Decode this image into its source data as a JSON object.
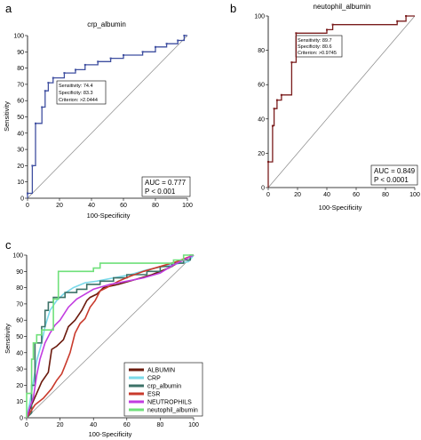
{
  "panels": [
    {
      "letter": "a",
      "title": "crp_albumin",
      "xlabel": "100-Specificity",
      "ylabel": "Sensitivity",
      "annotation": [
        "Sensitivity: 74.4",
        "Specificity: 83.3",
        "Criterion: >2.0444"
      ],
      "auc": [
        "AUC = 0.777",
        "P < 0.001"
      ]
    },
    {
      "letter": "b",
      "title": "neutophil_albumin",
      "xlabel": "100-Specificity",
      "ylabel": "",
      "annotation": [
        "Sensitivity: 89.7",
        "Specificity: 80.6",
        "Criterion: >0.9745"
      ],
      "auc": [
        "AUC = 0.849",
        "P < 0.0001"
      ]
    },
    {
      "letter": "c",
      "title": "",
      "xlabel": "100-Specificity",
      "ylabel": "Sensitivity",
      "legend": [
        "ALBUMIN",
        "CRP",
        "crp_albumin",
        "ESR",
        "NEUTROPHILS",
        "neutophil_albumin"
      ]
    }
  ],
  "chart_data": [
    {
      "type": "line",
      "title": "crp_albumin",
      "xlabel": "100-Specificity",
      "ylabel": "Sensitivity",
      "xlim": [
        0,
        100
      ],
      "ylim": [
        0,
        100
      ],
      "xticks": [
        0,
        20,
        40,
        60,
        80,
        100
      ],
      "yticks": [
        0,
        10,
        20,
        30,
        40,
        50,
        60,
        70,
        80,
        90,
        100
      ],
      "colors": {
        "roc": "#3f4fa0",
        "diagonal": "#8a8a8a"
      },
      "series": [
        {
          "values_xy": [
            [
              0,
              0
            ],
            [
              0,
              3
            ],
            [
              3,
              3
            ],
            [
              3,
              20
            ],
            [
              5,
              20
            ],
            [
              5,
              46
            ],
            [
              9,
              46
            ],
            [
              9,
              56
            ],
            [
              11,
              56
            ],
            [
              11,
              66
            ],
            [
              13,
              66
            ],
            [
              13,
              71
            ],
            [
              16,
              71
            ],
            [
              16,
              74
            ],
            [
              23,
              74
            ],
            [
              23,
              77
            ],
            [
              30,
              77
            ],
            [
              30,
              79
            ],
            [
              36,
              79
            ],
            [
              36,
              82
            ],
            [
              44,
              82
            ],
            [
              44,
              84
            ],
            [
              52,
              84
            ],
            [
              52,
              86
            ],
            [
              60,
              86
            ],
            [
              60,
              88
            ],
            [
              72,
              88
            ],
            [
              72,
              90
            ],
            [
              80,
              90
            ],
            [
              80,
              93
            ],
            [
              87,
              93
            ],
            [
              87,
              95
            ],
            [
              94,
              95
            ],
            [
              94,
              97
            ],
            [
              98,
              97
            ],
            [
              98,
              100
            ],
            [
              100,
              100
            ]
          ]
        }
      ]
    },
    {
      "type": "line",
      "title": "neutophil_albumin",
      "xlabel": "100-Specificity",
      "ylabel": "",
      "xlim": [
        0,
        100
      ],
      "ylim": [
        0,
        100
      ],
      "xticks": [
        0,
        20,
        40,
        60,
        80,
        100
      ],
      "yticks": [
        0,
        20,
        40,
        60,
        80,
        100
      ],
      "colors": {
        "roc": "#7a1c1c",
        "diagonal": "#8a8a8a"
      },
      "series": [
        {
          "values_xy": [
            [
              0,
              0
            ],
            [
              0,
              15
            ],
            [
              3,
              15
            ],
            [
              3,
              36
            ],
            [
              4,
              36
            ],
            [
              4,
              46
            ],
            [
              6,
              46
            ],
            [
              6,
              51
            ],
            [
              9,
              51
            ],
            [
              9,
              54
            ],
            [
              16,
              54
            ],
            [
              16,
              73
            ],
            [
              19,
              73
            ],
            [
              19,
              90
            ],
            [
              40,
              90
            ],
            [
              40,
              92
            ],
            [
              44,
              92
            ],
            [
              44,
              95
            ],
            [
              88,
              95
            ],
            [
              88,
              97
            ],
            [
              94,
              97
            ],
            [
              94,
              100
            ],
            [
              100,
              100
            ]
          ]
        }
      ]
    },
    {
      "type": "line",
      "title": "",
      "xlabel": "100-Specificity",
      "ylabel": "Sensitivity",
      "xlim": [
        0,
        100
      ],
      "ylim": [
        0,
        100
      ],
      "xticks": [
        0,
        20,
        40,
        60,
        80,
        100
      ],
      "yticks": [
        0,
        10,
        20,
        30,
        40,
        50,
        60,
        70,
        80,
        90,
        100
      ],
      "legend_position": "bottom-right",
      "colors": {
        "diagonal": "#8a8a8a"
      },
      "series": [
        {
          "name": "ALBUMIN",
          "color": "#6b1a0d",
          "values_xy": [
            [
              0,
              0
            ],
            [
              3,
              8
            ],
            [
              6,
              15
            ],
            [
              9,
              22
            ],
            [
              13,
              28
            ],
            [
              15,
              42
            ],
            [
              18,
              44
            ],
            [
              22,
              48
            ],
            [
              25,
              56
            ],
            [
              29,
              60
            ],
            [
              33,
              66
            ],
            [
              36,
              72
            ],
            [
              38,
              74
            ],
            [
              42,
              76
            ],
            [
              46,
              80
            ],
            [
              55,
              82
            ],
            [
              65,
              85
            ],
            [
              75,
              88
            ],
            [
              85,
              92
            ],
            [
              92,
              96
            ],
            [
              100,
              100
            ]
          ]
        },
        {
          "name": "CRP",
          "color": "#7ad9ea",
          "values_xy": [
            [
              0,
              0
            ],
            [
              2,
              10
            ],
            [
              4,
              22
            ],
            [
              6,
              35
            ],
            [
              9,
              46
            ],
            [
              11,
              56
            ],
            [
              14,
              66
            ],
            [
              18,
              72
            ],
            [
              22,
              76
            ],
            [
              28,
              80
            ],
            [
              35,
              83
            ],
            [
              42,
              84
            ],
            [
              52,
              86
            ],
            [
              62,
              88
            ],
            [
              72,
              91
            ],
            [
              82,
              93
            ],
            [
              92,
              95
            ],
            [
              97,
              96
            ],
            [
              100,
              100
            ]
          ]
        },
        {
          "name": "crp_albumin",
          "color": "#3c7268",
          "values_xy": [
            [
              0,
              0
            ],
            [
              3,
              3
            ],
            [
              3,
              20
            ],
            [
              5,
              20
            ],
            [
              5,
              46
            ],
            [
              9,
              46
            ],
            [
              9,
              56
            ],
            [
              11,
              56
            ],
            [
              11,
              66
            ],
            [
              13,
              66
            ],
            [
              13,
              71
            ],
            [
              16,
              71
            ],
            [
              16,
              74
            ],
            [
              23,
              74
            ],
            [
              23,
              77
            ],
            [
              30,
              77
            ],
            [
              30,
              79
            ],
            [
              36,
              79
            ],
            [
              36,
              82
            ],
            [
              44,
              82
            ],
            [
              44,
              84
            ],
            [
              52,
              84
            ],
            [
              52,
              86
            ],
            [
              60,
              86
            ],
            [
              60,
              88
            ],
            [
              72,
              88
            ],
            [
              72,
              90
            ],
            [
              80,
              90
            ],
            [
              80,
              93
            ],
            [
              87,
              93
            ],
            [
              87,
              95
            ],
            [
              94,
              95
            ],
            [
              94,
              97
            ],
            [
              98,
              97
            ],
            [
              98,
              100
            ],
            [
              100,
              100
            ]
          ]
        },
        {
          "name": "ESR",
          "color": "#c93a2c",
          "values_xy": [
            [
              0,
              0
            ],
            [
              5,
              8
            ],
            [
              10,
              12
            ],
            [
              15,
              18
            ],
            [
              18,
              23
            ],
            [
              21,
              27
            ],
            [
              23,
              32
            ],
            [
              26,
              40
            ],
            [
              29,
              52
            ],
            [
              32,
              58
            ],
            [
              35,
              61
            ],
            [
              38,
              68
            ],
            [
              41,
              72
            ],
            [
              44,
              78
            ],
            [
              48,
              80
            ],
            [
              55,
              84
            ],
            [
              62,
              87
            ],
            [
              70,
              90
            ],
            [
              80,
              93
            ],
            [
              90,
              96
            ],
            [
              100,
              100
            ]
          ]
        },
        {
          "name": "NEUTROPHILS",
          "color": "#c23de0",
          "values_xy": [
            [
              0,
              0
            ],
            [
              2,
              7
            ],
            [
              4,
              12
            ],
            [
              6,
              26
            ],
            [
              8,
              36
            ],
            [
              11,
              46
            ],
            [
              14,
              52
            ],
            [
              17,
              57
            ],
            [
              20,
              60
            ],
            [
              25,
              68
            ],
            [
              30,
              73
            ],
            [
              35,
              76
            ],
            [
              40,
              79
            ],
            [
              50,
              82
            ],
            [
              60,
              84
            ],
            [
              70,
              86
            ],
            [
              80,
              89
            ],
            [
              88,
              94
            ],
            [
              94,
              97
            ],
            [
              100,
              100
            ]
          ]
        },
        {
          "name": "neutophil_albumin",
          "color": "#6fe07a",
          "values_xy": [
            [
              0,
              0
            ],
            [
              0,
              15
            ],
            [
              3,
              15
            ],
            [
              3,
              36
            ],
            [
              4,
              36
            ],
            [
              4,
              46
            ],
            [
              6,
              46
            ],
            [
              6,
              51
            ],
            [
              9,
              51
            ],
            [
              9,
              54
            ],
            [
              16,
              54
            ],
            [
              16,
              73
            ],
            [
              19,
              73
            ],
            [
              19,
              90
            ],
            [
              40,
              90
            ],
            [
              40,
              92
            ],
            [
              44,
              92
            ],
            [
              44,
              95
            ],
            [
              88,
              95
            ],
            [
              88,
              97
            ],
            [
              94,
              97
            ],
            [
              94,
              100
            ],
            [
              100,
              100
            ]
          ]
        }
      ]
    }
  ]
}
